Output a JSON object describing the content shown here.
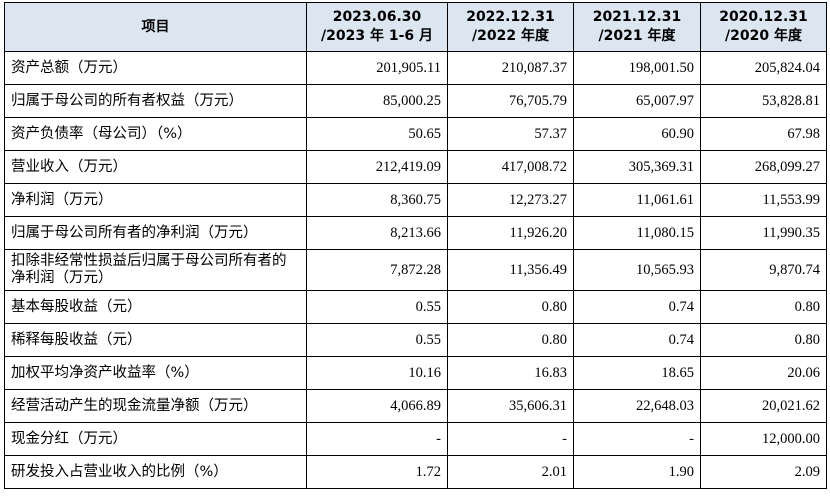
{
  "table": {
    "header": {
      "item": "项目",
      "cols": [
        {
          "line1": "2023.06.30",
          "line2": "/2023 年 1-6 月"
        },
        {
          "line1": "2022.12.31",
          "line2": "/2022 年度"
        },
        {
          "line1": "2021.12.31",
          "line2": "/2021 年度"
        },
        {
          "line1": "2020.12.31",
          "line2": "/2020 年度"
        }
      ]
    },
    "rows": [
      {
        "label": "资产总额（万元）",
        "values": [
          "201,905.11",
          "210,087.37",
          "198,001.50",
          "205,824.04"
        ]
      },
      {
        "label": "归属于母公司的所有者权益（万元）",
        "values": [
          "85,000.25",
          "76,705.79",
          "65,007.97",
          "53,828.81"
        ]
      },
      {
        "label": "资产负债率（母公司）（%）",
        "values": [
          "50.65",
          "57.37",
          "60.90",
          "67.98"
        ]
      },
      {
        "label": "营业收入（万元）",
        "values": [
          "212,419.09",
          "417,008.72",
          "305,369.31",
          "268,099.27"
        ]
      },
      {
        "label": "净利润（万元）",
        "values": [
          "8,360.75",
          "12,273.27",
          "11,061.61",
          "11,553.99"
        ]
      },
      {
        "label": "归属于母公司所有者的净利润（万元）",
        "values": [
          "8,213.66",
          "11,926.20",
          "11,080.15",
          "11,990.35"
        ]
      },
      {
        "label": "扣除非经常性损益后归属于母公司所有者的净利润（万元）",
        "values": [
          "7,872.28",
          "11,356.49",
          "10,565.93",
          "9,870.74"
        ]
      },
      {
        "label": "基本每股收益（元）",
        "values": [
          "0.55",
          "0.80",
          "0.74",
          "0.80"
        ]
      },
      {
        "label": "稀释每股收益（元）",
        "values": [
          "0.55",
          "0.80",
          "0.74",
          "0.80"
        ]
      },
      {
        "label": "加权平均净资产收益率（%）",
        "values": [
          "10.16",
          "16.83",
          "18.65",
          "20.06"
        ]
      },
      {
        "label": "经营活动产生的现金流量净额（万元）",
        "values": [
          "4,066.89",
          "35,606.31",
          "22,648.03",
          "20,021.62"
        ]
      },
      {
        "label": "现金分红（万元）",
        "values": [
          "-",
          "-",
          "-",
          "12,000.00"
        ]
      },
      {
        "label": "研发投入占营业收入的比例（%）",
        "values": [
          "1.72",
          "2.01",
          "1.90",
          "2.09"
        ]
      }
    ]
  }
}
